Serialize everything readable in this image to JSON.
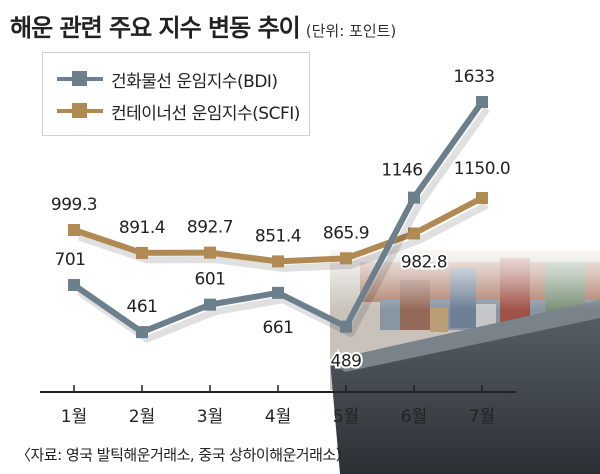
{
  "title": "해운 관련 주요 지수 변동 추이",
  "unit": "(단위: 포인트)",
  "source": "〈자료: 영국 발틱해운거래소, 중국 상하이해운거래소〉",
  "colors": {
    "bdi": "#6b7f8c",
    "scfi": "#b08a52",
    "axis": "#222222"
  },
  "chart_data": {
    "type": "line",
    "categories": [
      "1월",
      "2월",
      "3월",
      "4월",
      "5월",
      "6월",
      "7월"
    ],
    "series": [
      {
        "name": "건화물선 운임지수(BDI)",
        "values": [
          701,
          461,
          601,
          661,
          489,
          1146,
          1633
        ],
        "labels": [
          "701",
          "461",
          "601",
          "661",
          "489",
          "1146",
          "1633"
        ]
      },
      {
        "name": "컨테이너선 운임지수(SCFI)",
        "values": [
          999.3,
          891.4,
          892.7,
          851.4,
          865.9,
          982.8,
          1150.0
        ],
        "labels": [
          "999.3",
          "891.4",
          "892.7",
          "851.4",
          "865.9",
          "982.8",
          "1150.0"
        ]
      }
    ],
    "grid": false,
    "legend": "top-left"
  }
}
